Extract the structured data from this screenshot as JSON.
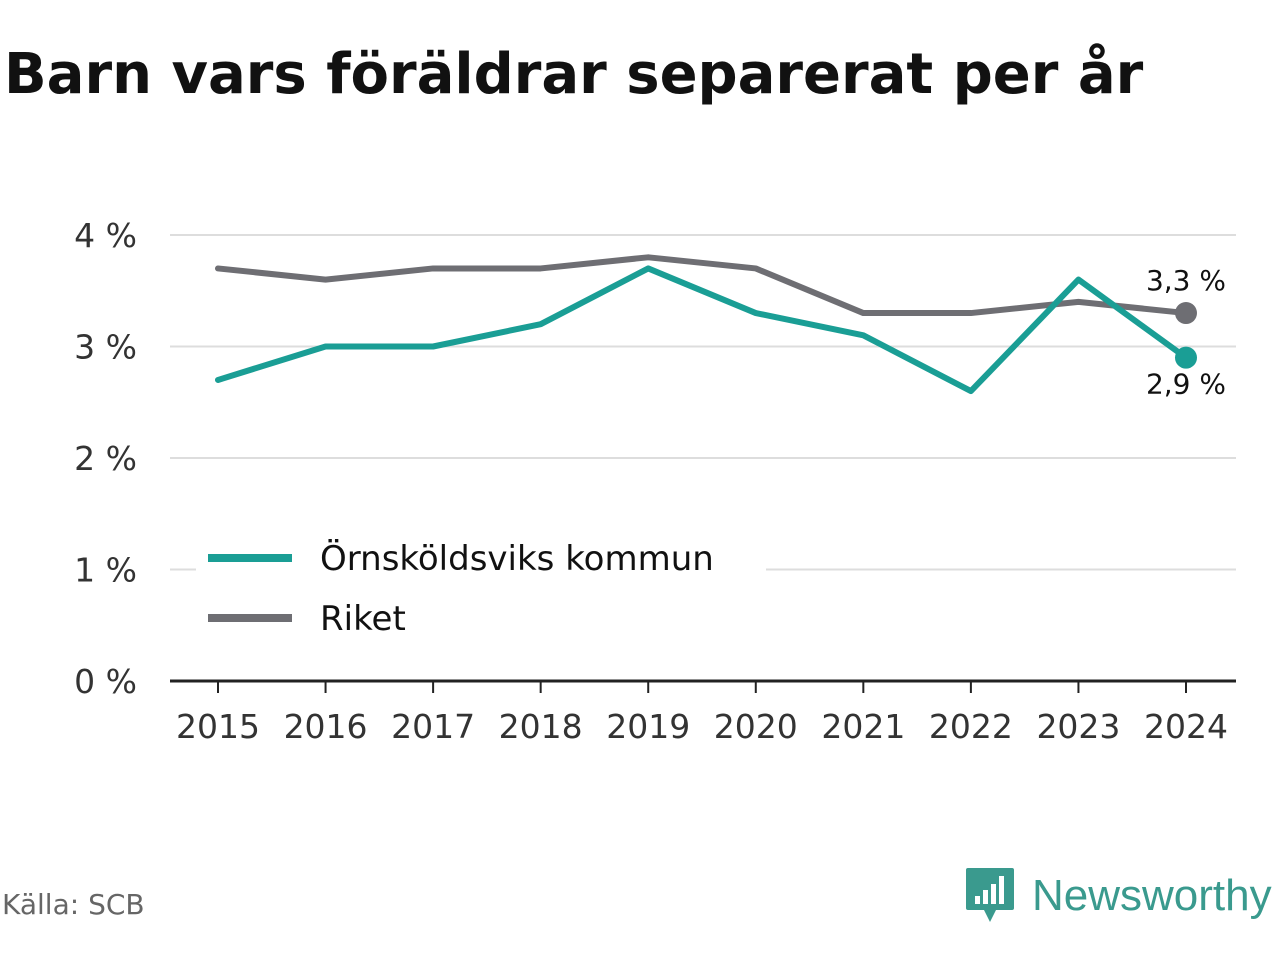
{
  "chart_data": {
    "type": "line",
    "title": "Barn vars föräldrar separerat per år",
    "x": [
      "2015",
      "2016",
      "2017",
      "2018",
      "2019",
      "2020",
      "2021",
      "2022",
      "2023",
      "2024"
    ],
    "ylim": [
      0,
      4
    ],
    "y_ticks": [
      0,
      1,
      2,
      3,
      4
    ],
    "y_tick_labels": [
      "0 %",
      "1 %",
      "2 %",
      "3 %",
      "4 %"
    ],
    "grid": true,
    "legend_placement": "bottom-left",
    "series": [
      {
        "name": "Örnsköldsviks kommun",
        "color": "#1a9e95",
        "values": [
          2.7,
          3.0,
          3.0,
          3.2,
          3.7,
          3.3,
          3.1,
          2.6,
          3.6,
          2.9
        ],
        "end_label": "2,9 %"
      },
      {
        "name": "Riket",
        "color": "#6e6e73",
        "values": [
          3.7,
          3.6,
          3.7,
          3.7,
          3.8,
          3.7,
          3.3,
          3.3,
          3.4,
          3.3
        ],
        "end_label": "3,3 %"
      }
    ]
  },
  "footer": {
    "source": "Källa: SCB",
    "brand": "Newsworthy"
  },
  "colors": {
    "brand": "#3a9a8e",
    "grid": "#dddddd",
    "axis": "#222222"
  }
}
